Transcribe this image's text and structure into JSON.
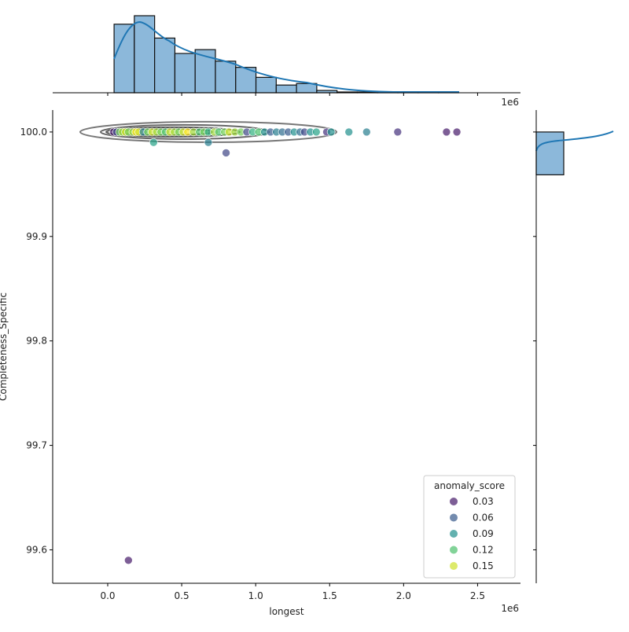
{
  "chart_data": {
    "type": "scatter",
    "subtype": "jointplot with marginal histograms and KDE contours",
    "xlabel": "longest",
    "ylabel": "Completeness_Specific",
    "x_offset_label": "1e6",
    "top_offset_label": "1e6",
    "xlim": [
      -0.372,
      2.79
    ],
    "ylim": [
      99.568,
      100.021
    ],
    "x_ticks": [
      0.0,
      0.5,
      1.0,
      1.5,
      2.0,
      2.5
    ],
    "x_tick_labels": [
      "0.0",
      "0.5",
      "1.0",
      "1.5",
      "2.0",
      "2.5"
    ],
    "y_ticks": [
      99.6,
      99.7,
      99.8,
      99.9,
      100.0
    ],
    "y_tick_labels": [
      "99.6",
      "99.7",
      "99.8",
      "99.9",
      "100.0"
    ],
    "grid": false,
    "legend": {
      "title": "anomaly_score",
      "placement": "lower-right",
      "entries": [
        {
          "label": "0.03",
          "value": 0.03
        },
        {
          "label": "0.06",
          "value": 0.06
        },
        {
          "label": "0.09",
          "value": 0.09
        },
        {
          "label": "0.12",
          "value": 0.12
        },
        {
          "label": "0.15",
          "value": 0.15
        }
      ]
    },
    "colormap": "viridis",
    "hue_range": [
      0.02,
      0.16
    ],
    "points": [
      [
        0.04,
        100,
        0.03
      ],
      [
        0.06,
        100,
        0.05
      ],
      [
        0.08,
        100,
        0.13
      ],
      [
        0.1,
        100,
        0.14
      ],
      [
        0.12,
        100,
        0.15
      ],
      [
        0.14,
        100,
        0.13
      ],
      [
        0.17,
        100,
        0.14
      ],
      [
        0.19,
        100,
        0.16
      ],
      [
        0.21,
        100,
        0.15
      ],
      [
        0.24,
        100,
        0.08
      ],
      [
        0.27,
        100,
        0.13
      ],
      [
        0.3,
        100,
        0.15
      ],
      [
        0.33,
        100,
        0.14
      ],
      [
        0.36,
        100,
        0.13
      ],
      [
        0.39,
        100,
        0.12
      ],
      [
        0.42,
        100,
        0.15
      ],
      [
        0.45,
        100,
        0.14
      ],
      [
        0.48,
        100,
        0.13
      ],
      [
        0.51,
        100,
        0.15
      ],
      [
        0.54,
        100,
        0.16
      ],
      [
        0.58,
        100,
        0.14
      ],
      [
        0.62,
        100,
        0.12
      ],
      [
        0.65,
        100,
        0.13
      ],
      [
        0.68,
        100,
        0.11
      ],
      [
        0.72,
        100,
        0.14
      ],
      [
        0.75,
        100,
        0.12
      ],
      [
        0.79,
        100,
        0.13
      ],
      [
        0.82,
        100,
        0.15
      ],
      [
        0.86,
        100,
        0.14
      ],
      [
        0.9,
        100,
        0.13
      ],
      [
        0.94,
        100,
        0.05
      ],
      [
        0.98,
        100,
        0.11
      ],
      [
        1.02,
        100,
        0.12
      ],
      [
        1.06,
        100,
        0.09
      ],
      [
        1.1,
        100,
        0.06
      ],
      [
        1.14,
        100,
        0.08
      ],
      [
        1.18,
        100,
        0.07
      ],
      [
        1.22,
        100,
        0.06
      ],
      [
        1.26,
        100,
        0.09
      ],
      [
        1.3,
        100,
        0.07
      ],
      [
        1.33,
        100,
        0.05
      ],
      [
        1.37,
        100,
        0.09
      ],
      [
        1.41,
        100,
        0.1
      ],
      [
        1.48,
        100,
        0.04
      ],
      [
        1.51,
        100,
        0.09
      ],
      [
        1.63,
        100,
        0.09
      ],
      [
        1.75,
        100,
        0.08
      ],
      [
        1.96,
        100,
        0.04
      ],
      [
        2.29,
        100,
        0.03
      ],
      [
        2.36,
        100,
        0.03
      ],
      [
        0.31,
        99.99,
        0.1
      ],
      [
        0.68,
        99.99,
        0.08
      ],
      [
        0.8,
        99.98,
        0.05
      ],
      [
        0.14,
        99.59,
        0.03
      ]
    ],
    "top_histogram": {
      "bin_start": 0.043,
      "bin_width": 0.137,
      "relative_heights": [
        0.89,
        1.0,
        0.71,
        0.51,
        0.56,
        0.41,
        0.33,
        0.2,
        0.1,
        0.12,
        0.03,
        0.01,
        0.01,
        0.005,
        0.005,
        0.005,
        0.01
      ]
    },
    "right_histogram": {
      "bin_range": [
        99.959,
        100.0
      ],
      "relative_width": 1.0
    }
  }
}
